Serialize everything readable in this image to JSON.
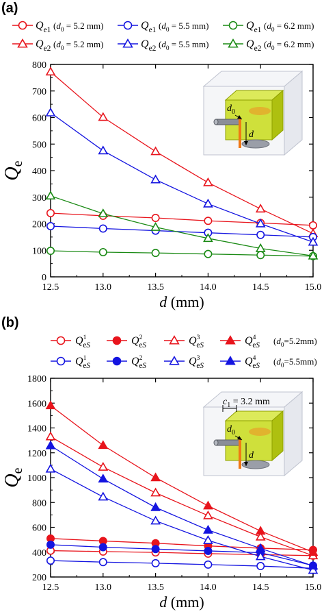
{
  "colors": {
    "red": "#e8141c",
    "blue": "#1414e0",
    "green": "#1a8a14",
    "axis": "#000000",
    "box": "#bfc3cf",
    "box_fill": "#eef0f4",
    "yellow": "#c8dc1a",
    "orange": "#f07814",
    "pin": "#8a8e98"
  },
  "chart_data": [
    {
      "panel_label": "(a)",
      "type": "line",
      "x": [
        12.5,
        13.0,
        13.5,
        14.0,
        14.5,
        15.0
      ],
      "x_tick_labels": [
        "12.5",
        "13.0",
        "13.5",
        "14.0",
        "14.5",
        "15.0"
      ],
      "xlim": [
        12.5,
        15.0
      ],
      "y_ticks": [
        0,
        100,
        200,
        300,
        400,
        500,
        600,
        700,
        800
      ],
      "ylim": [
        0,
        800
      ],
      "xlabel_var": "d",
      "xlabel_unit": "(mm)",
      "ylabel_main": "Q",
      "ylabel_sub": "e",
      "legend_rows": [
        [
          {
            "series": 0,
            "q": "Q",
            "sub": "e1",
            "sup": "",
            "cond": "(d0 = 5.2 mm)"
          },
          {
            "series": 2,
            "q": "Q",
            "sub": "e1",
            "sup": "",
            "cond": "(d0 = 5.5 mm)"
          },
          {
            "series": 4,
            "q": "Q",
            "sub": "e1",
            "sup": "",
            "cond": "(d0 = 6.2 mm)"
          }
        ],
        [
          {
            "series": 1,
            "q": "Q",
            "sub": "e2",
            "sup": "",
            "cond": "(d0 = 5.2 mm)"
          },
          {
            "series": 3,
            "q": "Q",
            "sub": "e2",
            "sup": "",
            "cond": "(d0 = 5.5 mm)"
          },
          {
            "series": 5,
            "q": "Q",
            "sub": "e2",
            "sup": "",
            "cond": "(d0 = 6.2 mm)"
          }
        ]
      ],
      "series": [
        {
          "name": "Qe1 (d0 = 5.2 mm)",
          "color": "red",
          "marker": "circle",
          "filled": false,
          "values": [
            240,
            230,
            222,
            211,
            203,
            194
          ]
        },
        {
          "name": "Qe2 (d0 = 5.2 mm)",
          "color": "red",
          "marker": "triangle",
          "filled": false,
          "values": [
            772,
            601,
            472,
            355,
            256,
            163
          ]
        },
        {
          "name": "Qe1 (d0 = 5.5 mm)",
          "color": "blue",
          "marker": "circle",
          "filled": false,
          "values": [
            191,
            182,
            174,
            166,
            158,
            150
          ]
        },
        {
          "name": "Qe2 (d0 = 5.5 mm)",
          "color": "blue",
          "marker": "triangle",
          "filled": false,
          "values": [
            618,
            475,
            366,
            275,
            200,
            131
          ]
        },
        {
          "name": "Qe1 (d0 = 6.2 mm)",
          "color": "green",
          "marker": "circle",
          "filled": false,
          "values": [
            98,
            93,
            90,
            86,
            82,
            78
          ]
        },
        {
          "name": "Qe2 (d0 = 6.2 mm)",
          "color": "green",
          "marker": "triangle",
          "filled": false,
          "values": [
            305,
            238,
            187,
            145,
            107,
            79
          ]
        }
      ],
      "inset_labels": [
        "d0",
        "d"
      ],
      "grid": false
    },
    {
      "panel_label": "(b)",
      "type": "line",
      "x": [
        12.5,
        13.0,
        13.5,
        14.0,
        14.5,
        15.0
      ],
      "x_tick_labels": [
        "12.5",
        "13.0",
        "13.5",
        "14.0",
        "14.5",
        "15.0"
      ],
      "xlim": [
        12.5,
        15.0
      ],
      "y_ticks": [
        200,
        400,
        600,
        800,
        1000,
        1200,
        1400,
        1600,
        1800
      ],
      "ylim": [
        200,
        1800
      ],
      "xlabel_var": "d",
      "xlabel_unit": "(mm)",
      "ylabel_main": "Q",
      "ylabel_sub": "e",
      "legend_rows": [
        {
          "cond": "(d0=5.2mm)",
          "items": [
            {
              "series": 0,
              "q": "Q",
              "sub": "eS",
              "sup": "1"
            },
            {
              "series": 1,
              "q": "Q",
              "sub": "eS",
              "sup": "2"
            },
            {
              "series": 2,
              "q": "Q",
              "sub": "eS",
              "sup": "3"
            },
            {
              "series": 3,
              "q": "Q",
              "sub": "eS",
              "sup": "4"
            }
          ]
        },
        {
          "cond": "(d0=5.5mm)",
          "items": [
            {
              "series": 4,
              "q": "Q",
              "sub": "eS",
              "sup": "1"
            },
            {
              "series": 5,
              "q": "Q",
              "sub": "eS",
              "sup": "2"
            },
            {
              "series": 6,
              "q": "Q",
              "sub": "eS",
              "sup": "3"
            },
            {
              "series": 7,
              "q": "Q",
              "sub": "eS",
              "sup": "4"
            }
          ]
        }
      ],
      "series": [
        {
          "name": "Q1eS (d0=5.2mm)",
          "color": "red",
          "marker": "circle",
          "filled": false,
          "values": [
            412,
            405,
            398,
            388,
            380,
            372
          ]
        },
        {
          "name": "Q2eS (d0=5.2mm)",
          "color": "red",
          "marker": "circle",
          "filled": true,
          "values": [
            510,
            490,
            472,
            450,
            432,
            418
          ]
        },
        {
          "name": "Q3eS (d0=5.2mm)",
          "color": "red",
          "marker": "triangle",
          "filled": false,
          "values": [
            1330,
            1085,
            878,
            694,
            523,
            372
          ]
        },
        {
          "name": "Q4eS (d0=5.2mm)",
          "color": "red",
          "marker": "triangle",
          "filled": true,
          "values": [
            1580,
            1260,
            1000,
            773,
            570,
            400
          ]
        },
        {
          "name": "Q1eS (d0=5.5mm)",
          "color": "blue",
          "marker": "circle",
          "filled": false,
          "values": [
            332,
            320,
            311,
            300,
            288,
            270
          ]
        },
        {
          "name": "Q2eS (d0=5.5mm)",
          "color": "blue",
          "marker": "circle",
          "filled": true,
          "values": [
            460,
            440,
            425,
            410,
            396,
            292
          ]
        },
        {
          "name": "Q3eS (d0=5.5mm)",
          "color": "blue",
          "marker": "triangle",
          "filled": false,
          "values": [
            1070,
            845,
            652,
            495,
            365,
            255
          ]
        },
        {
          "name": "Q4eS (d0=5.5mm)",
          "color": "blue",
          "marker": "triangle",
          "filled": true,
          "values": [
            1258,
            990,
            760,
            578,
            430,
            290
          ]
        }
      ],
      "inset_labels": [
        "c1 = 3.2 mm",
        "d0",
        "d"
      ],
      "grid": false
    }
  ]
}
